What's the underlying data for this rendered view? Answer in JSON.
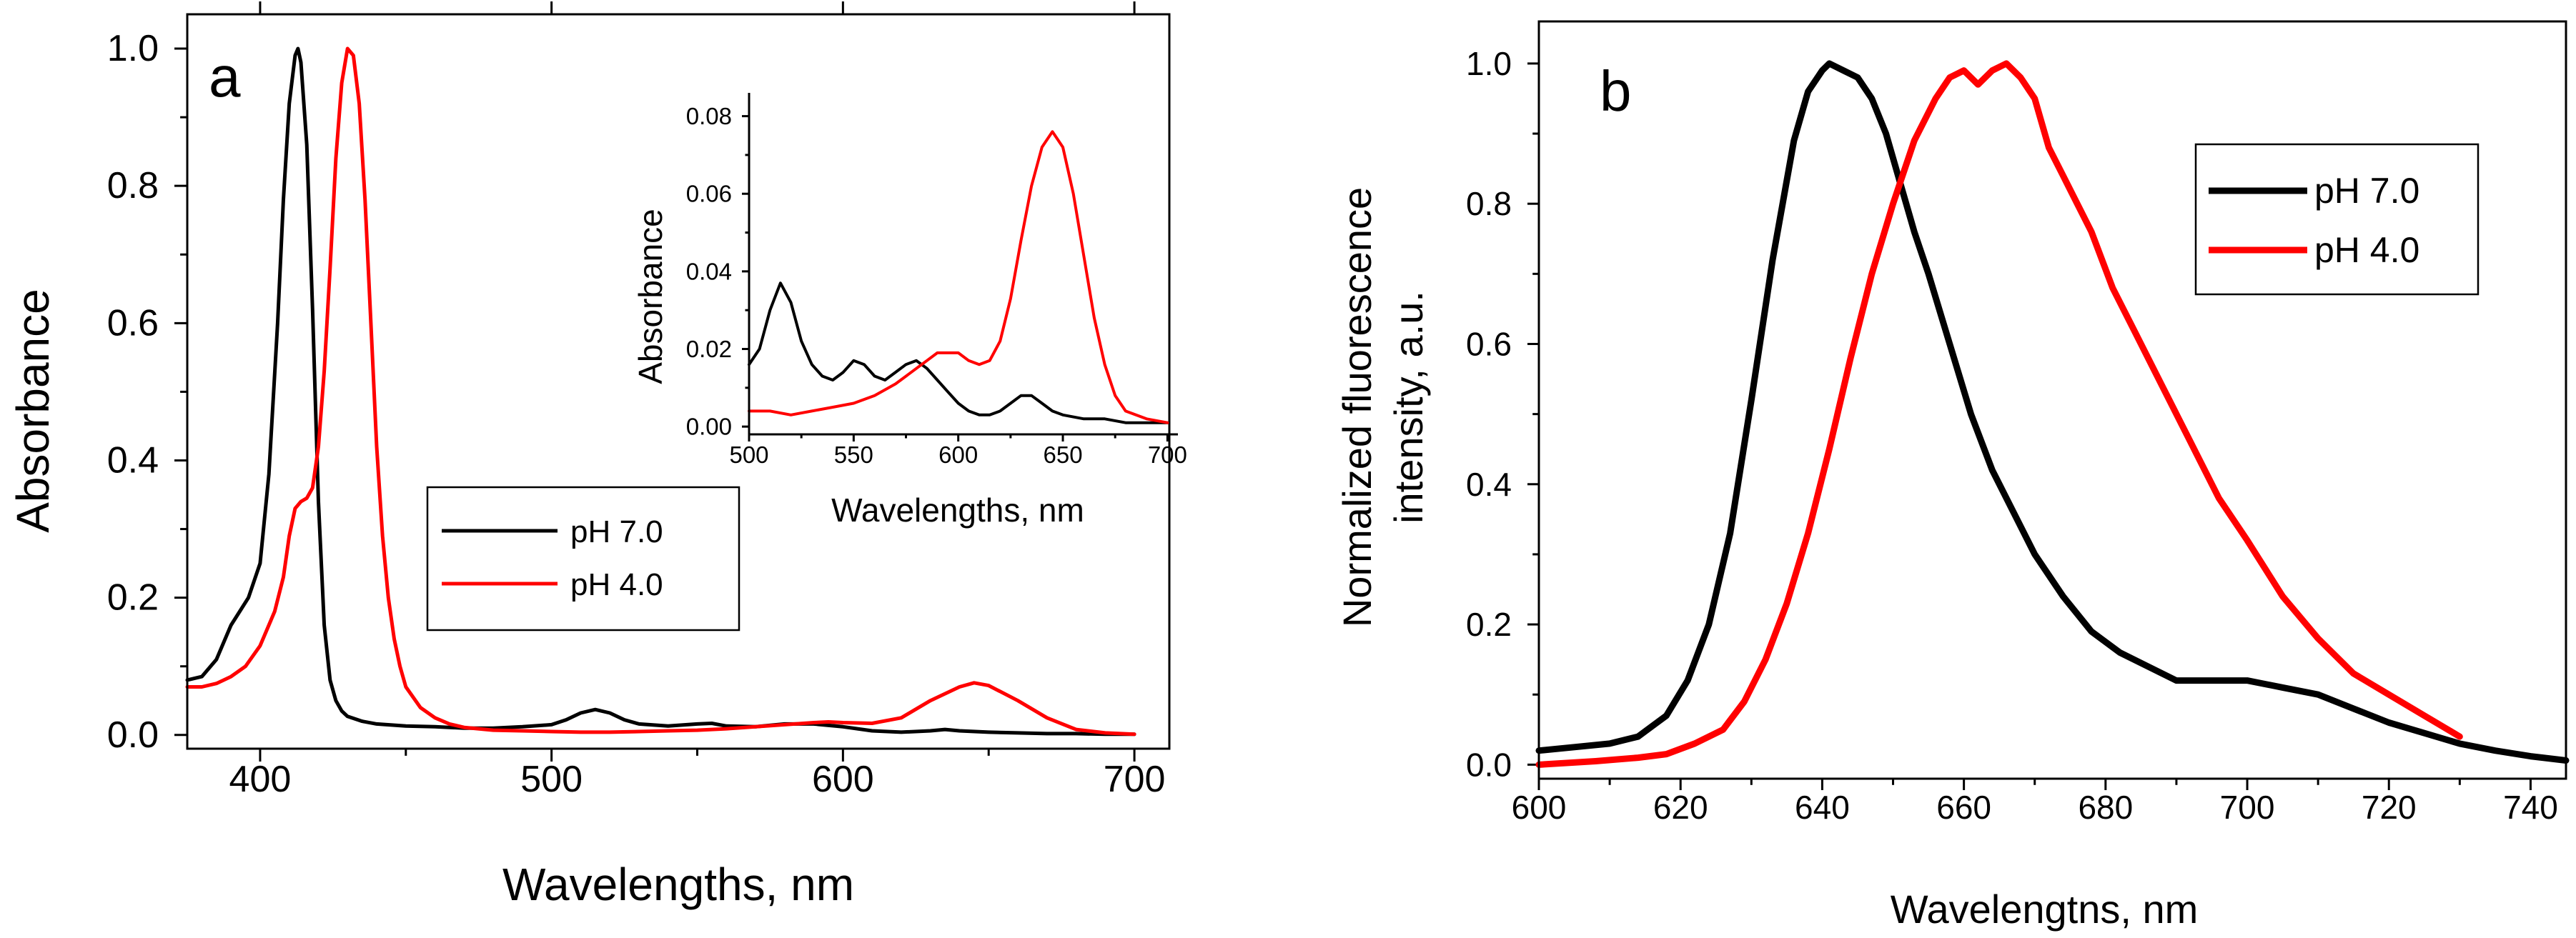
{
  "chart_data": [
    {
      "type": "line",
      "panel_label": "a",
      "xlabel": "Wavelengths, nm",
      "ylabel": "Absorbance",
      "xlim": [
        375,
        712
      ],
      "ylim": [
        -0.02,
        1.05
      ],
      "xticks": [
        400,
        500,
        600,
        700
      ],
      "xtick_labels": [
        "400",
        "500",
        "600",
        "700"
      ],
      "yticks": [
        0.0,
        0.2,
        0.4,
        0.6,
        0.8,
        1.0
      ],
      "ytick_labels": [
        "0.0",
        "0.2",
        "0.4",
        "0.6",
        "0.8",
        "1.0"
      ],
      "legend": [
        "pH 7.0",
        "pH 4.0"
      ],
      "legend_position": "center-left",
      "series": [
        {
          "name": "pH 7.0",
          "color": "#000000",
          "x": [
            375,
            380,
            385,
            390,
            393,
            396,
            400,
            403,
            406,
            408,
            410,
            412,
            413,
            414,
            416,
            418,
            420,
            422,
            424,
            426,
            428,
            430,
            435,
            440,
            450,
            460,
            470,
            480,
            490,
            500,
            505,
            510,
            515,
            520,
            525,
            530,
            540,
            550,
            555,
            560,
            570,
            580,
            590,
            600,
            610,
            620,
            630,
            635,
            640,
            650,
            660,
            670,
            680,
            690,
            700
          ],
          "y": [
            0.08,
            0.085,
            0.11,
            0.16,
            0.18,
            0.2,
            0.25,
            0.38,
            0.6,
            0.78,
            0.92,
            0.99,
            1.0,
            0.98,
            0.86,
            0.62,
            0.34,
            0.16,
            0.08,
            0.05,
            0.035,
            0.027,
            0.02,
            0.016,
            0.013,
            0.012,
            0.01,
            0.01,
            0.012,
            0.015,
            0.022,
            0.032,
            0.037,
            0.032,
            0.022,
            0.016,
            0.013,
            0.016,
            0.017,
            0.013,
            0.012,
            0.016,
            0.016,
            0.012,
            0.006,
            0.004,
            0.006,
            0.008,
            0.006,
            0.004,
            0.003,
            0.002,
            0.002,
            0.001,
            0.001
          ]
        },
        {
          "name": "pH 4.0",
          "color": "#ff0000",
          "x": [
            375,
            380,
            385,
            390,
            395,
            400,
            405,
            408,
            410,
            412,
            414,
            416,
            418,
            420,
            422,
            424,
            426,
            428,
            430,
            432,
            434,
            436,
            438,
            440,
            442,
            444,
            446,
            448,
            450,
            455,
            460,
            465,
            470,
            480,
            490,
            500,
            510,
            520,
            530,
            540,
            550,
            560,
            570,
            580,
            590,
            595,
            600,
            610,
            620,
            630,
            640,
            645,
            650,
            660,
            670,
            680,
            690,
            700
          ],
          "y": [
            0.07,
            0.07,
            0.075,
            0.085,
            0.1,
            0.13,
            0.18,
            0.23,
            0.29,
            0.33,
            0.34,
            0.345,
            0.36,
            0.42,
            0.53,
            0.68,
            0.84,
            0.95,
            1.0,
            0.99,
            0.92,
            0.78,
            0.6,
            0.42,
            0.29,
            0.2,
            0.14,
            0.1,
            0.07,
            0.04,
            0.025,
            0.016,
            0.011,
            0.007,
            0.006,
            0.005,
            0.004,
            0.004,
            0.005,
            0.006,
            0.007,
            0.009,
            0.012,
            0.015,
            0.018,
            0.019,
            0.018,
            0.017,
            0.025,
            0.05,
            0.07,
            0.076,
            0.072,
            0.05,
            0.025,
            0.008,
            0.003,
            0.001
          ]
        }
      ]
    },
    {
      "type": "line",
      "panel_label": "inset",
      "xlabel": "Wavelengths, nm",
      "ylabel": "Absorbance",
      "xlim": [
        500,
        705
      ],
      "ylim": [
        -0.002,
        0.086
      ],
      "xticks": [
        500,
        550,
        600,
        650,
        700
      ],
      "xtick_labels": [
        "500",
        "550",
        "600",
        "650",
        "700"
      ],
      "yticks": [
        0.0,
        0.02,
        0.04,
        0.06,
        0.08
      ],
      "ytick_labels": [
        "0.00",
        "0.02",
        "0.04",
        "0.06",
        "0.08"
      ],
      "series": [
        {
          "name": "pH 7.0",
          "color": "#000000",
          "x": [
            500,
            505,
            510,
            515,
            520,
            525,
            530,
            535,
            540,
            545,
            550,
            555,
            560,
            565,
            570,
            575,
            580,
            585,
            590,
            595,
            600,
            605,
            610,
            615,
            620,
            625,
            630,
            635,
            640,
            645,
            650,
            660,
            670,
            680,
            690,
            700
          ],
          "y": [
            0.016,
            0.02,
            0.03,
            0.037,
            0.032,
            0.022,
            0.016,
            0.013,
            0.012,
            0.014,
            0.017,
            0.016,
            0.013,
            0.012,
            0.014,
            0.016,
            0.017,
            0.015,
            0.012,
            0.009,
            0.006,
            0.004,
            0.003,
            0.003,
            0.004,
            0.006,
            0.008,
            0.008,
            0.006,
            0.004,
            0.003,
            0.002,
            0.002,
            0.001,
            0.001,
            0.001
          ]
        },
        {
          "name": "pH 4.0",
          "color": "#ff0000",
          "x": [
            500,
            510,
            520,
            530,
            540,
            550,
            560,
            570,
            580,
            585,
            590,
            595,
            600,
            605,
            610,
            615,
            620,
            625,
            630,
            635,
            640,
            645,
            650,
            655,
            660,
            665,
            670,
            675,
            680,
            690,
            700
          ],
          "y": [
            0.004,
            0.004,
            0.003,
            0.004,
            0.005,
            0.006,
            0.008,
            0.011,
            0.015,
            0.017,
            0.019,
            0.019,
            0.019,
            0.017,
            0.016,
            0.017,
            0.022,
            0.033,
            0.048,
            0.062,
            0.072,
            0.076,
            0.072,
            0.06,
            0.044,
            0.028,
            0.016,
            0.008,
            0.004,
            0.002,
            0.001
          ]
        }
      ]
    },
    {
      "type": "line",
      "panel_label": "b",
      "xlabel": "Wavelengtns, nm",
      "ylabel_line1": "Normalized fluorescence",
      "ylabel_line2": "intensity, a.u.",
      "xlim": [
        600,
        745
      ],
      "ylim": [
        -0.02,
        1.06
      ],
      "xticks": [
        600,
        620,
        640,
        660,
        680,
        700,
        720,
        740
      ],
      "xtick_labels": [
        "600",
        "620",
        "640",
        "660",
        "680",
        "700",
        "720",
        "740"
      ],
      "yticks": [
        0.0,
        0.2,
        0.4,
        0.6,
        0.8,
        1.0
      ],
      "ytick_labels": [
        "0.0",
        "0.2",
        "0.4",
        "0.6",
        "0.8",
        "1.0"
      ],
      "legend": [
        "pH 7.0",
        "pH 4.0"
      ],
      "legend_position": "top-right",
      "series": [
        {
          "name": "pH 7.0",
          "color": "#000000",
          "x": [
            600,
            605,
            610,
            614,
            618,
            621,
            624,
            627,
            630,
            633,
            636,
            638,
            640,
            641,
            643,
            645,
            647,
            649,
            651,
            653,
            655,
            658,
            661,
            664,
            667,
            670,
            674,
            678,
            682,
            686,
            690,
            695,
            700,
            705,
            710,
            715,
            720,
            725,
            730,
            735,
            740,
            745
          ],
          "y": [
            0.02,
            0.025,
            0.03,
            0.04,
            0.07,
            0.12,
            0.2,
            0.33,
            0.52,
            0.72,
            0.89,
            0.96,
            0.99,
            1.0,
            0.99,
            0.98,
            0.95,
            0.9,
            0.83,
            0.76,
            0.7,
            0.6,
            0.5,
            0.42,
            0.36,
            0.3,
            0.24,
            0.19,
            0.16,
            0.14,
            0.12,
            0.12,
            0.12,
            0.11,
            0.1,
            0.08,
            0.06,
            0.045,
            0.03,
            0.02,
            0.012,
            0.006
          ]
        },
        {
          "name": "pH 4.0",
          "color": "#ff0000",
          "x": [
            600,
            608,
            614,
            618,
            622,
            626,
            629,
            632,
            635,
            638,
            641,
            644,
            647,
            650,
            653,
            656,
            658,
            660,
            662,
            664,
            666,
            668,
            670,
            672,
            674,
            676,
            678,
            681,
            684,
            688,
            692,
            696,
            700,
            705,
            710,
            715,
            720,
            725,
            730
          ],
          "y": [
            0.0,
            0.005,
            0.01,
            0.015,
            0.03,
            0.05,
            0.09,
            0.15,
            0.23,
            0.33,
            0.45,
            0.58,
            0.7,
            0.8,
            0.89,
            0.95,
            0.98,
            0.99,
            0.97,
            0.99,
            1.0,
            0.98,
            0.95,
            0.88,
            0.84,
            0.8,
            0.76,
            0.68,
            0.62,
            0.54,
            0.46,
            0.38,
            0.32,
            0.24,
            0.18,
            0.13,
            0.1,
            0.07,
            0.04
          ]
        }
      ]
    }
  ]
}
